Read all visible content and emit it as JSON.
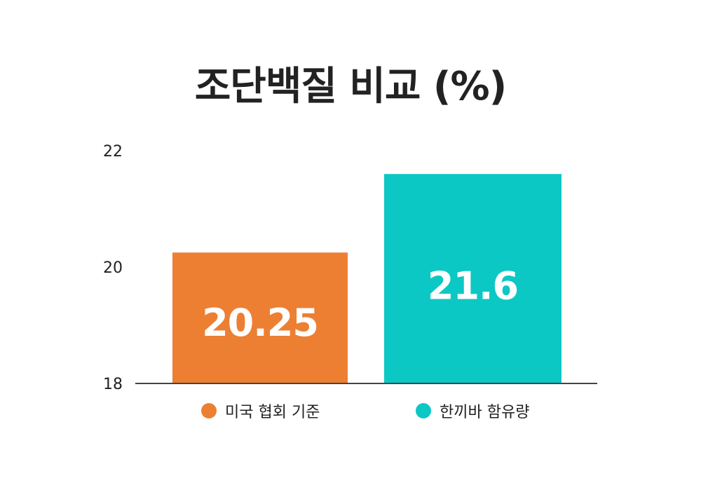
{
  "chart_data": {
    "type": "bar",
    "title": "조단백질 비교 (%)",
    "categories": [
      "미국 협회 기준",
      "한끼바 함유량"
    ],
    "values": [
      20.25,
      21.6
    ],
    "data_labels": [
      "20.25",
      "21.6"
    ],
    "colors": [
      "#ED7F33",
      "#0CC8C4"
    ],
    "ylim": [
      18,
      22
    ],
    "yticks": [
      18,
      20,
      22
    ],
    "ytick_labels": [
      "18",
      "20",
      "22"
    ],
    "xlabel": "",
    "ylabel": "",
    "grid": false,
    "legend_position": "bottom-center"
  }
}
